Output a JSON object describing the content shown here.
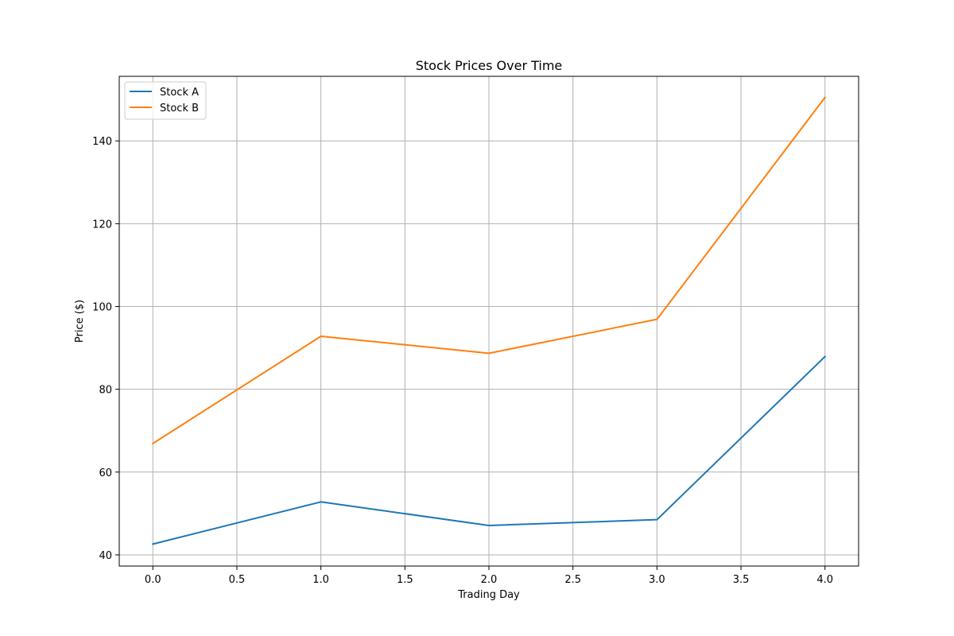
{
  "chart_data": {
    "type": "line",
    "title": "Stock Prices Over Time",
    "xlabel": "Trading Day",
    "ylabel": "Price ($)",
    "x": [
      0,
      1,
      2,
      3,
      4
    ],
    "xlim": [
      -0.2,
      4.2
    ],
    "ylim": [
      37.3,
      155.6
    ],
    "xticks": [
      0.0,
      0.5,
      1.0,
      1.5,
      2.0,
      2.5,
      3.0,
      3.5,
      4.0
    ],
    "xtick_labels": [
      "0.0",
      "0.5",
      "1.0",
      "1.5",
      "2.0",
      "2.5",
      "3.0",
      "3.5",
      "4.0"
    ],
    "yticks": [
      40,
      60,
      80,
      100,
      120,
      140
    ],
    "ytick_labels": [
      "40",
      "60",
      "80",
      "100",
      "120",
      "140"
    ],
    "grid": true,
    "legend": "top-left",
    "series": [
      {
        "name": "Stock A",
        "color": "#1f77b4",
        "values": [
          42.6,
          52.8,
          47.1,
          48.5,
          87.9
        ]
      },
      {
        "name": "Stock B",
        "color": "#ff7f0e",
        "values": [
          66.9,
          92.8,
          88.7,
          96.9,
          150.5
        ]
      }
    ]
  }
}
